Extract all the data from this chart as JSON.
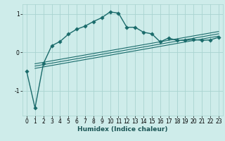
{
  "xlabel": "Humidex (Indice chaleur)",
  "bg_color": "#ceecea",
  "line_color": "#1a6b6b",
  "grid_color": "#aad4d0",
  "main_x": [
    0,
    1,
    2,
    3,
    4,
    5,
    6,
    7,
    8,
    9,
    10,
    11,
    12,
    13,
    14,
    15,
    16,
    17,
    18,
    19,
    20,
    21,
    22,
    23
  ],
  "main_y": [
    -0.5,
    -1.45,
    -0.3,
    0.17,
    0.28,
    0.47,
    0.6,
    0.68,
    0.8,
    0.9,
    1.05,
    1.02,
    0.65,
    0.65,
    0.52,
    0.48,
    0.27,
    0.37,
    0.31,
    0.31,
    0.33,
    0.31,
    0.32,
    0.39
  ],
  "trend_lines": [
    {
      "x0": 1,
      "x1": 23,
      "y0": -0.42,
      "y1": 0.42
    },
    {
      "x0": 1,
      "x1": 23,
      "y0": -0.36,
      "y1": 0.48
    },
    {
      "x0": 1,
      "x1": 23,
      "y0": -0.3,
      "y1": 0.54
    }
  ],
  "xlim": [
    -0.5,
    23.5
  ],
  "ylim": [
    -1.65,
    1.25
  ],
  "yticks": [
    -1,
    0,
    1
  ],
  "xticks": [
    0,
    1,
    2,
    3,
    4,
    5,
    6,
    7,
    8,
    9,
    10,
    11,
    12,
    13,
    14,
    15,
    16,
    17,
    18,
    19,
    20,
    21,
    22,
    23
  ],
  "markersize": 2.8,
  "linewidth": 1.0,
  "label_fontsize": 6.5,
  "tick_fontsize": 5.5
}
